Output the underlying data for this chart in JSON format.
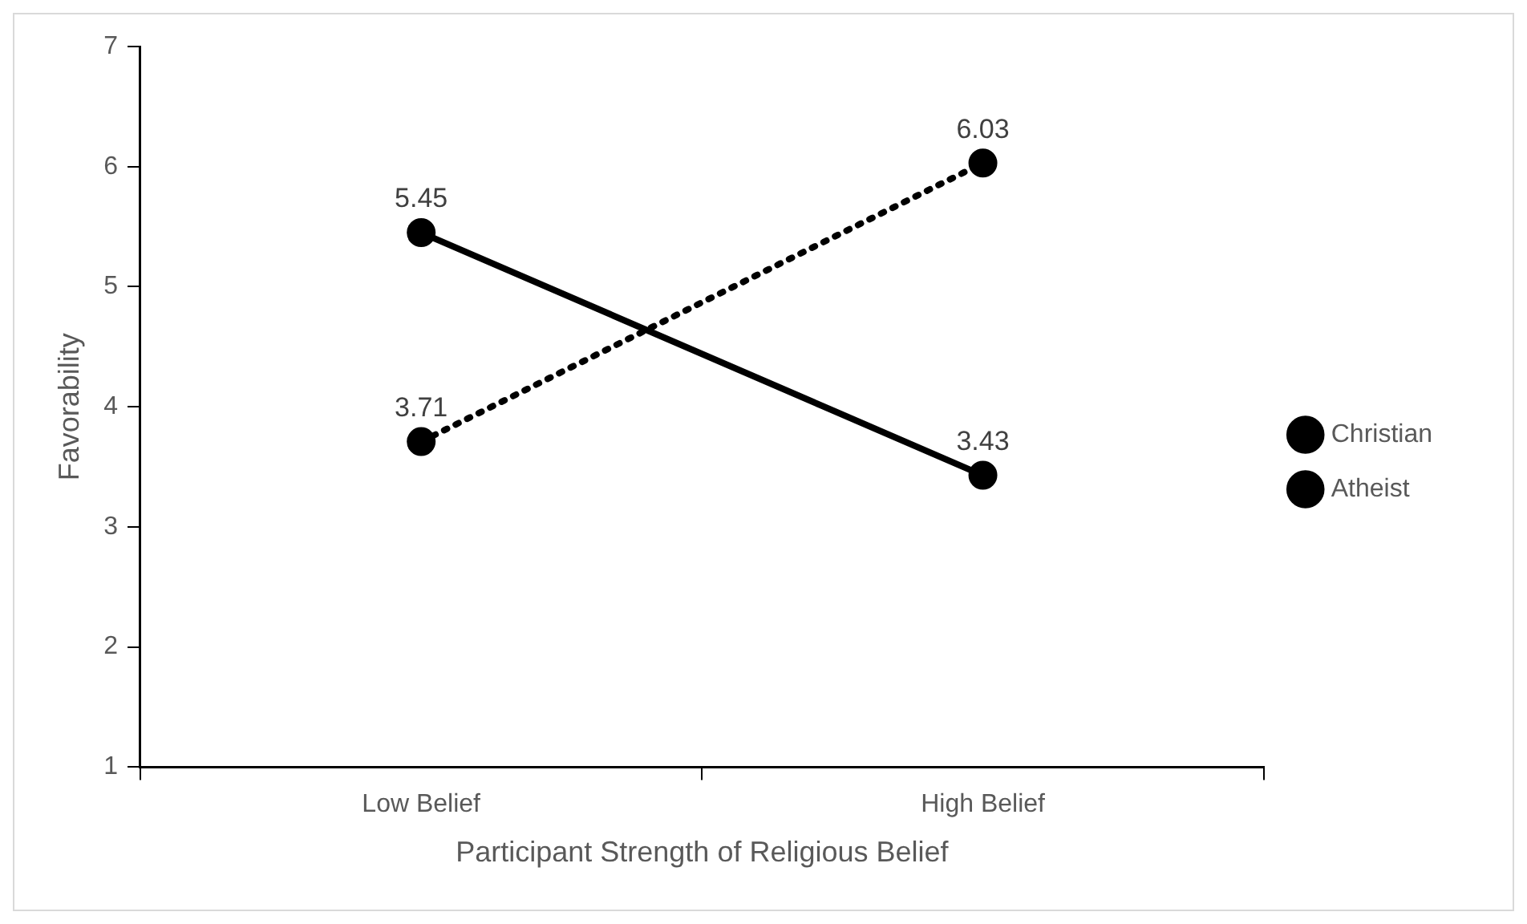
{
  "chart_data": {
    "type": "line",
    "xlabel": "Participant Strength of Religious Belief",
    "ylabel": "Favorability",
    "categories": [
      "Low Belief",
      "High Belief"
    ],
    "series": [
      {
        "name": "Christian",
        "color": "#000000",
        "values": [
          3.71,
          6.03
        ],
        "line_style": "dotted"
      },
      {
        "name": "Atheist",
        "color": "#000000",
        "values": [
          5.45,
          3.43
        ],
        "line_style": "solid"
      }
    ],
    "ylim": [
      1,
      7
    ],
    "yticks": [
      1,
      2,
      3,
      4,
      5,
      6,
      7
    ],
    "grid": false,
    "legend": "right",
    "marker": "circle",
    "data_labels": true
  }
}
